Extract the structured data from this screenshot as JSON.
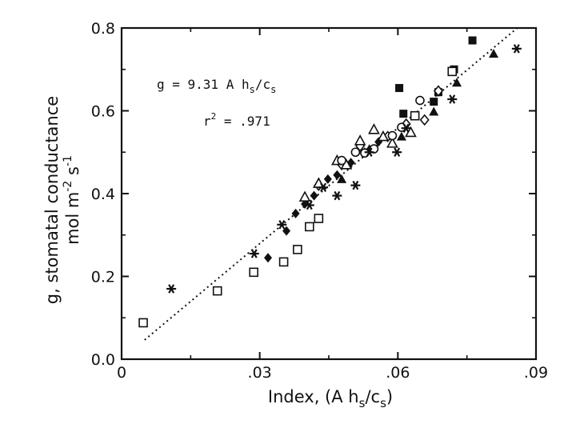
{
  "chart_data": {
    "type": "scatter",
    "xlabel": "Index, (A h",
    "xlabel_sub": "s",
    "xlabel_sep": "/c",
    "xlabel_sub2": "s",
    "xlabel_close": ")",
    "ylabel_line1": "g, stomatal conductance",
    "ylabel_line2_unit": "mol m",
    "ylabel_line2_exp1": "-2",
    "ylabel_line2_mid": " s",
    "ylabel_line2_exp2": "-1",
    "xlim": [
      0,
      0.09
    ],
    "ylim": [
      0.0,
      0.8
    ],
    "x_ticks": [
      0,
      0.03,
      0.06,
      0.09
    ],
    "x_tick_labels": [
      "0",
      ".03",
      ".06",
      ".09"
    ],
    "y_ticks": [
      0.0,
      0.2,
      0.4,
      0.6,
      0.8
    ],
    "y_tick_labels": [
      "0.0",
      "0.2",
      "0.4",
      "0.6",
      "0.8"
    ],
    "grid": false,
    "annotations": {
      "equation": "g = 9.31 A h",
      "equation_sub": "s",
      "equation_tail": "/c",
      "equation_sub2": "s",
      "r2_label": "r",
      "r2_sup": "2",
      "r2_value": " = .971"
    },
    "fit_line": {
      "slope": 9.31,
      "x_range": [
        0.005,
        0.086
      ]
    },
    "series": [
      {
        "marker": "filled-square",
        "points": [
          [
            0.0603,
            0.655
          ],
          [
            0.0612,
            0.593
          ],
          [
            0.0688,
            0.645
          ],
          [
            0.0722,
            0.7
          ],
          [
            0.0762,
            0.77
          ],
          [
            0.0678,
            0.622
          ]
        ]
      },
      {
        "marker": "open-square",
        "points": [
          [
            0.0047,
            0.088
          ],
          [
            0.0208,
            0.165
          ],
          [
            0.0287,
            0.21
          ],
          [
            0.0352,
            0.235
          ],
          [
            0.0382,
            0.265
          ],
          [
            0.0408,
            0.32
          ],
          [
            0.0428,
            0.34
          ],
          [
            0.0637,
            0.588
          ],
          [
            0.0718,
            0.695
          ]
        ]
      },
      {
        "marker": "filled-diamond",
        "points": [
          [
            0.0358,
            0.31
          ],
          [
            0.0398,
            0.375
          ],
          [
            0.0418,
            0.395
          ],
          [
            0.0448,
            0.435
          ],
          [
            0.0468,
            0.445
          ],
          [
            0.0498,
            0.475
          ],
          [
            0.0528,
            0.5
          ],
          [
            0.0558,
            0.525
          ],
          [
            0.0318,
            0.245
          ],
          [
            0.0378,
            0.352
          ]
        ]
      },
      {
        "marker": "open-diamond",
        "points": [
          [
            0.0428,
            0.42
          ],
          [
            0.0478,
            0.47
          ],
          [
            0.0518,
            0.515
          ],
          [
            0.0578,
            0.538
          ],
          [
            0.0618,
            0.568
          ],
          [
            0.0658,
            0.578
          ],
          [
            0.0688,
            0.648
          ]
        ]
      },
      {
        "marker": "open-triangle",
        "points": [
          [
            0.0398,
            0.392
          ],
          [
            0.0468,
            0.48
          ],
          [
            0.0488,
            0.47
          ],
          [
            0.0518,
            0.528
          ],
          [
            0.0548,
            0.555
          ],
          [
            0.0568,
            0.538
          ],
          [
            0.0588,
            0.522
          ],
          [
            0.0628,
            0.548
          ],
          [
            0.0428,
            0.425
          ]
        ]
      },
      {
        "marker": "filled-triangle",
        "points": [
          [
            0.0478,
            0.435
          ],
          [
            0.0538,
            0.508
          ],
          [
            0.0608,
            0.538
          ],
          [
            0.0678,
            0.598
          ],
          [
            0.0728,
            0.668
          ],
          [
            0.0808,
            0.738
          ]
        ]
      },
      {
        "marker": "open-circle",
        "points": [
          [
            0.0478,
            0.48
          ],
          [
            0.0528,
            0.498
          ],
          [
            0.0588,
            0.54
          ],
          [
            0.0608,
            0.56
          ],
          [
            0.0648,
            0.625
          ],
          [
            0.0548,
            0.508
          ],
          [
            0.0508,
            0.5
          ]
        ]
      },
      {
        "marker": "asterisk",
        "points": [
          [
            0.0108,
            0.17
          ],
          [
            0.0288,
            0.255
          ],
          [
            0.0348,
            0.325
          ],
          [
            0.0438,
            0.415
          ],
          [
            0.0468,
            0.395
          ],
          [
            0.0538,
            0.5
          ],
          [
            0.0598,
            0.5
          ],
          [
            0.0618,
            0.558
          ],
          [
            0.0718,
            0.628
          ],
          [
            0.0858,
            0.75
          ],
          [
            0.0408,
            0.372
          ],
          [
            0.0508,
            0.42
          ]
        ]
      }
    ]
  }
}
